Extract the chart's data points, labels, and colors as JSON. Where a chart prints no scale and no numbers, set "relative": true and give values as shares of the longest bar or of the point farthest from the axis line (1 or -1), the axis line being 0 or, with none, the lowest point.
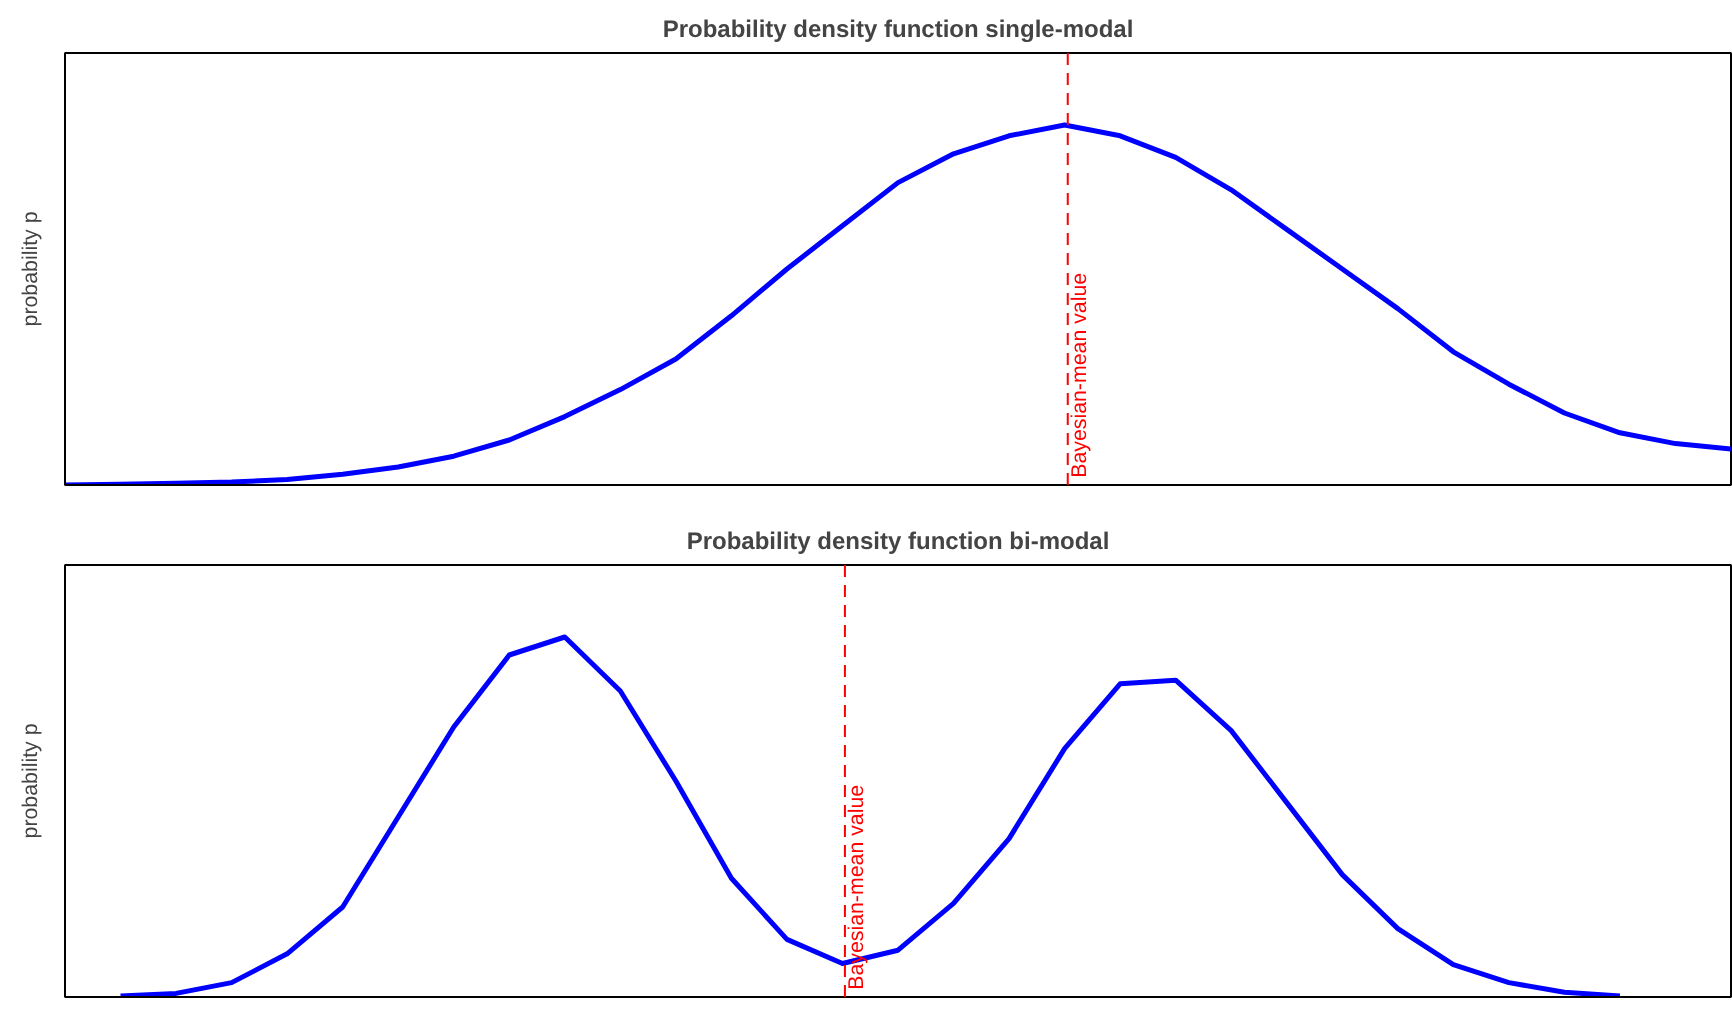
{
  "chart_data": [
    {
      "type": "line",
      "title": "Probability density function single-modal",
      "ylabel": "probability p",
      "relative": true,
      "categories": [
        null,
        null,
        null,
        null,
        null,
        null,
        null,
        null,
        null,
        null,
        null,
        null,
        null,
        null,
        null,
        null,
        null,
        null,
        null,
        null,
        null,
        null,
        null,
        null,
        null,
        null,
        null,
        null,
        null,
        null,
        null
      ],
      "series": [
        {
          "color": "#0000ff",
          "values": [
            0,
            0.002,
            0.005,
            0.008,
            0.015,
            0.03,
            0.05,
            0.08,
            0.125,
            0.19,
            0.265,
            0.35,
            0.47,
            0.6,
            0.72,
            0.84,
            0.92,
            0.97,
            1.0,
            0.97,
            0.91,
            0.82,
            0.71,
            0.6,
            0.49,
            0.37,
            0.28,
            0.2,
            0.145,
            0.115,
            0.1
          ]
        }
      ],
      "annotations": [
        "Bayesian-mean value"
      ],
      "tick_labels": false
    },
    {
      "type": "line",
      "title": "Probability density function bi-modal",
      "ylabel": "probability p",
      "relative": true,
      "categories": [
        null,
        null,
        null,
        null,
        null,
        null,
        null,
        null,
        null,
        null,
        null,
        null,
        null,
        null,
        null,
        null,
        null,
        null,
        null,
        null,
        null,
        null,
        null,
        null,
        null,
        null,
        null,
        null,
        null,
        null,
        null
      ],
      "series": [
        {
          "color": "#0000ff",
          "values": [
            null,
            0.003,
            0.01,
            0.04,
            0.12,
            0.25,
            0.5,
            0.75,
            0.95,
            1.0,
            0.85,
            0.6,
            0.33,
            0.16,
            0.093,
            0.13,
            0.26,
            0.44,
            0.69,
            0.87,
            0.88,
            0.74,
            0.54,
            0.34,
            0.19,
            0.09,
            0.04,
            0.013,
            0.003,
            null,
            null
          ]
        }
      ],
      "annotations": [
        "Bayesian-mean value"
      ],
      "tick_labels": false
    }
  ]
}
